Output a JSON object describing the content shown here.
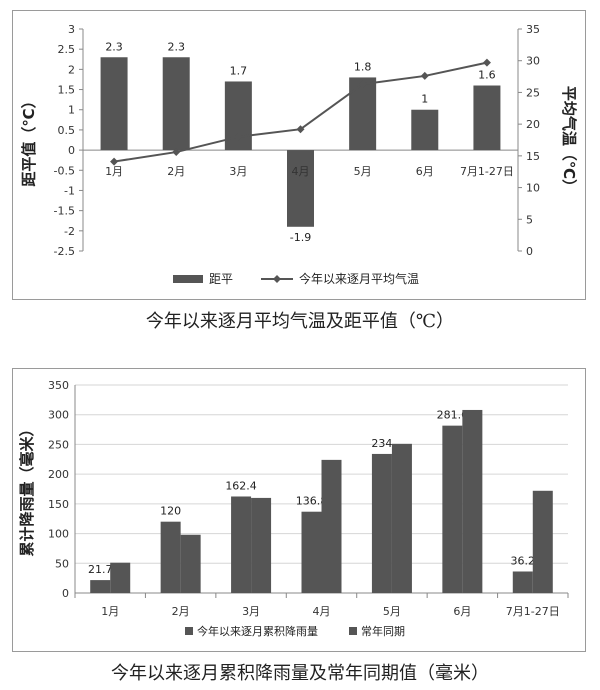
{
  "chart_data": [
    {
      "type": "bar+line",
      "title": "今年以来逐月平均气温及距平值（℃）",
      "categories": [
        "1月",
        "2月",
        "3月",
        "4月",
        "5月",
        "6月",
        "7月1-27日"
      ],
      "series": [
        {
          "name": "距平",
          "type": "bar",
          "axis": "left",
          "color": "#555555",
          "values": [
            2.3,
            2.3,
            1.7,
            -1.9,
            1.8,
            1.0,
            1.6
          ],
          "labels": [
            "2.3",
            "2.3",
            "1.7",
            "-1.9",
            "1.8",
            "1",
            "1.6"
          ]
        },
        {
          "name": "今年以来逐月平均气温",
          "type": "line",
          "axis": "right",
          "color": "#555555",
          "values": [
            14.1,
            15.6,
            18.0,
            19.2,
            26.3,
            27.6,
            29.7
          ]
        }
      ],
      "ylabel": "距平值（℃）",
      "y2label": "平均气温（℃）",
      "ylim": [
        -2.5,
        3
      ],
      "yticks": [
        "3",
        "2.5",
        "2",
        "1.5",
        "1",
        "0.5",
        "0",
        "-0.5",
        "-1",
        "-1.5",
        "-2",
        "-2.5"
      ],
      "y2lim": [
        0,
        35
      ],
      "y2ticks": [
        "35",
        "30",
        "25",
        "20",
        "15",
        "10",
        "5",
        "0"
      ],
      "legend_position": "bottom"
    },
    {
      "type": "bar",
      "title": "今年以来逐月累积降雨量及常年同期值（毫米）",
      "categories": [
        "1月",
        "2月",
        "3月",
        "4月",
        "5月",
        "6月",
        "7月1-27日"
      ],
      "series": [
        {
          "name": "今年以来逐月累积降雨量",
          "color": "#555555",
          "values": [
            21.7,
            120,
            162.4,
            136.8,
            234,
            281.6,
            36.2
          ],
          "labels": [
            "21.7",
            "120",
            "162.4",
            "136.8",
            "234",
            "281.6",
            "36.2"
          ]
        },
        {
          "name": "常年同期",
          "color": "#555555",
          "values": [
            51,
            98,
            160,
            224,
            251,
            308,
            172
          ]
        }
      ],
      "ylabel": "累计降雨量（毫米）",
      "ylim": [
        0,
        350
      ],
      "yticks": [
        "350",
        "300",
        "250",
        "200",
        "150",
        "100",
        "50",
        "0"
      ],
      "legend_position": "bottom"
    }
  ]
}
